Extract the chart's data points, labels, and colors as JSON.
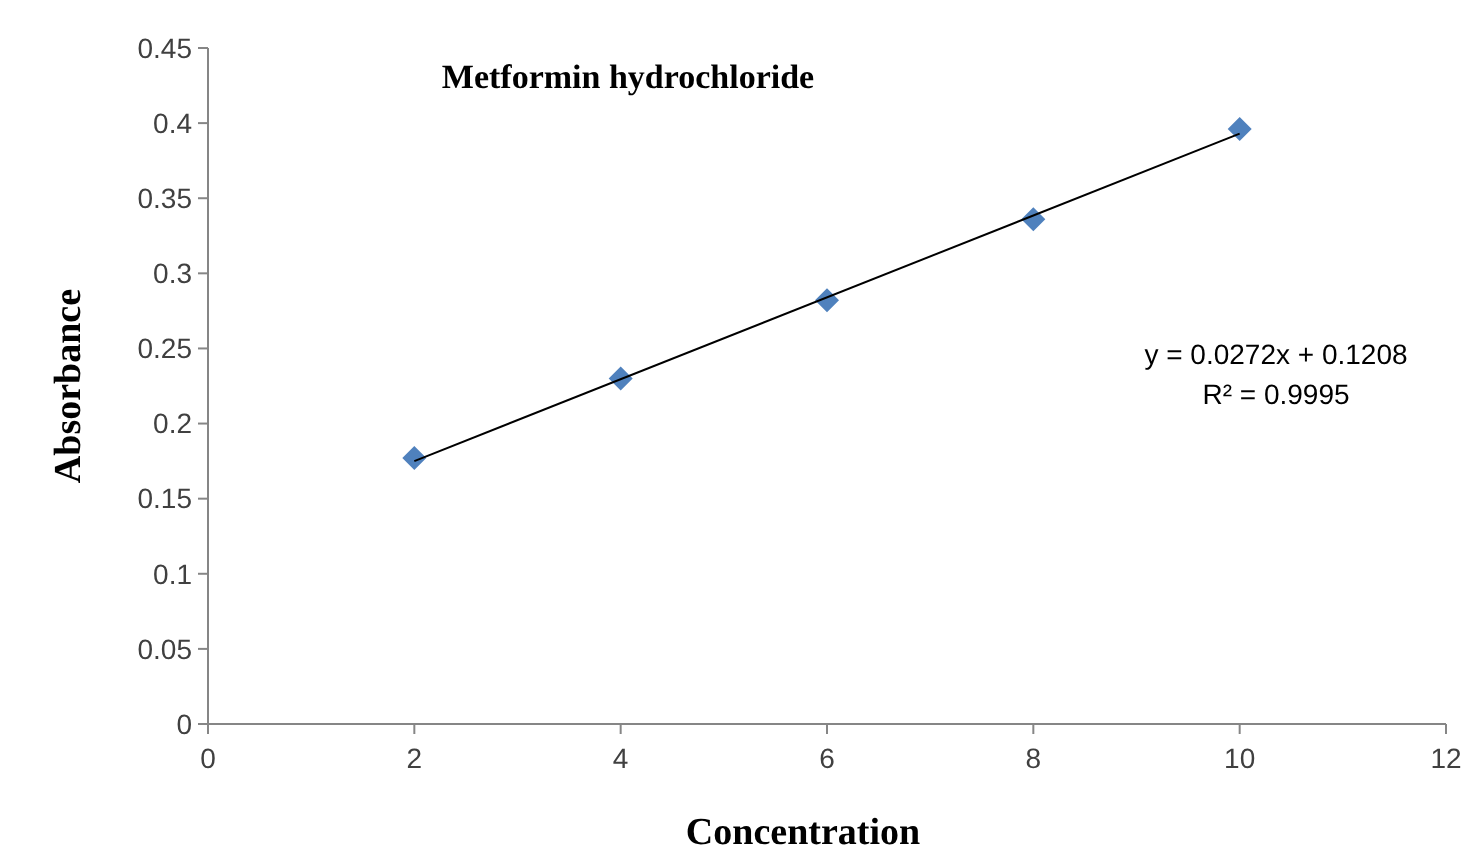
{
  "chart_data": {
    "type": "scatter",
    "title": "Metformin hydrochloride",
    "xlabel": "Concentration",
    "ylabel": "Absorbance",
    "xlim": [
      0,
      12
    ],
    "xticks": [
      0,
      2,
      4,
      6,
      8,
      10,
      12
    ],
    "ylim": [
      0,
      0.45
    ],
    "yticks": [
      0,
      0.05,
      0.1,
      0.15,
      0.2,
      0.25,
      0.3,
      0.35,
      0.4,
      0.45
    ],
    "grid": false,
    "series": [
      {
        "color": "#4f81bd",
        "marker": "diamond",
        "x": [
          2,
          4,
          6,
          8,
          10
        ],
        "values": [
          0.177,
          0.23,
          0.282,
          0.336,
          0.396
        ]
      },
      {
        "type": "line",
        "color": "#000000",
        "marker": "none",
        "line_style": "solid",
        "x": [
          2,
          10
        ],
        "values": [
          0.175,
          0.393
        ]
      }
    ],
    "annotations": [
      "y = 0.0272x + 0.1208",
      "R² = 0.9995"
    ]
  }
}
